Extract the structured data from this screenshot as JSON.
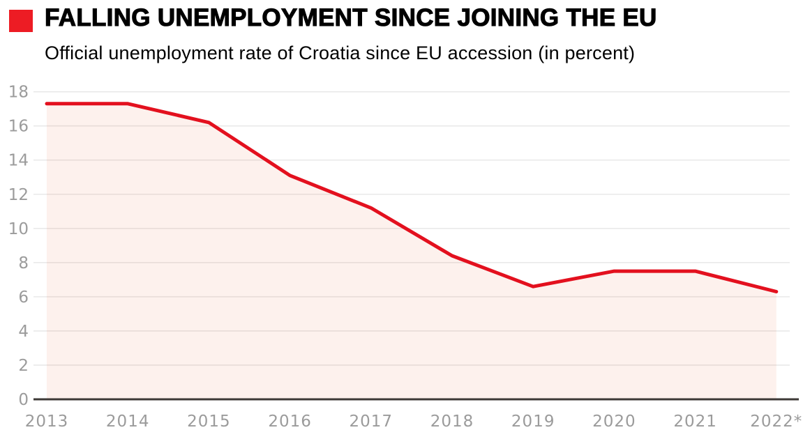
{
  "header": {
    "title": "FALLING UNEMPLOYMENT SINCE JOINING THE EU",
    "subtitle": "Official unemployment rate of Croatia since EU accession (in percent)"
  },
  "colors": {
    "accent_red": "#ED1C24",
    "line_red": "#E3101E",
    "area_fill": "rgba(226,77,28,0.08)",
    "gridline": "#E9E9E9",
    "axis_line": "#3D3936",
    "tick_text": "#9B9B9B"
  },
  "chart_data": {
    "type": "area",
    "categories": [
      "2013",
      "2014",
      "2015",
      "2016",
      "2017",
      "2018",
      "2019",
      "2020",
      "2021",
      "2022*"
    ],
    "values": [
      17.3,
      17.3,
      16.2,
      13.1,
      11.2,
      8.4,
      6.6,
      7.5,
      7.5,
      6.3
    ],
    "title": "FALLING UNEMPLOYMENT SINCE JOINING THE EU",
    "subtitle": "Official unemployment rate of Croatia since EU accession (in percent)",
    "xlabel": "",
    "ylabel": "",
    "ylim": [
      0,
      18
    ],
    "ytick_step": 2,
    "grid": true,
    "legend": false
  }
}
